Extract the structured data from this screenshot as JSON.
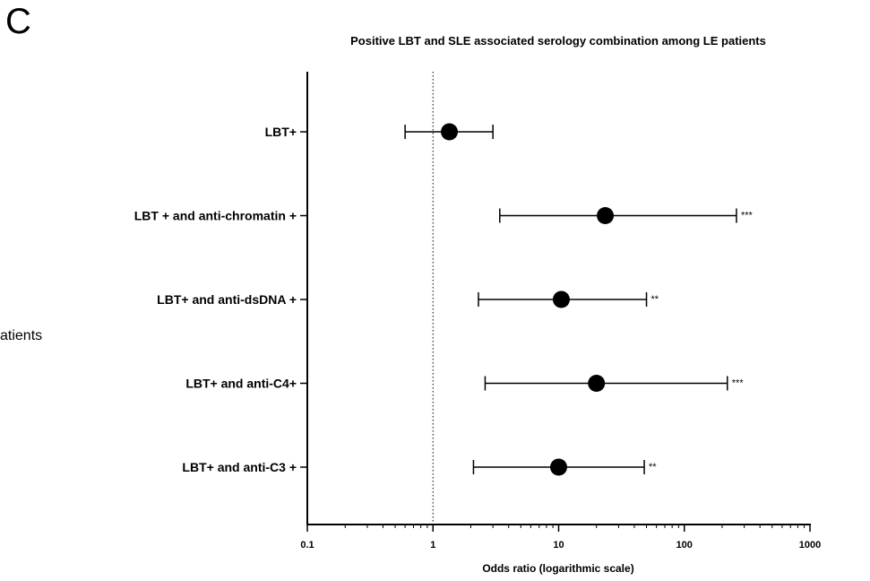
{
  "panel_label": "C",
  "side_text": "atients",
  "chart_data": {
    "type": "forest",
    "title": "Positive LBT and SLE associated serology combination among LE patients",
    "xlabel": "Odds ratio (logarithmic scale)",
    "ylabel": "",
    "x_scale": "log",
    "xlim": [
      0.1,
      1000
    ],
    "x_ticks": [
      0.1,
      1,
      10,
      100,
      1000
    ],
    "x_tick_labels": [
      "0.1",
      "1",
      "10",
      "100",
      "1000"
    ],
    "reference_line": 1,
    "grid": false,
    "categories": [
      "LBT+",
      "LBT + and anti-chromatin +",
      "LBT+ and anti-dsDNA +",
      "LBT+ and anti-C4+",
      "LBT+ and anti-C3 +"
    ],
    "odds_ratio": [
      1.35,
      23.5,
      10.5,
      20.0,
      10.0
    ],
    "ci_lower": [
      0.6,
      3.4,
      2.3,
      2.6,
      2.1
    ],
    "ci_upper": [
      3.0,
      260,
      50,
      220,
      48
    ],
    "significance": [
      "",
      "***",
      "**",
      "***",
      "**"
    ],
    "colors": {
      "marker": "#000000",
      "line": "#000000"
    }
  }
}
